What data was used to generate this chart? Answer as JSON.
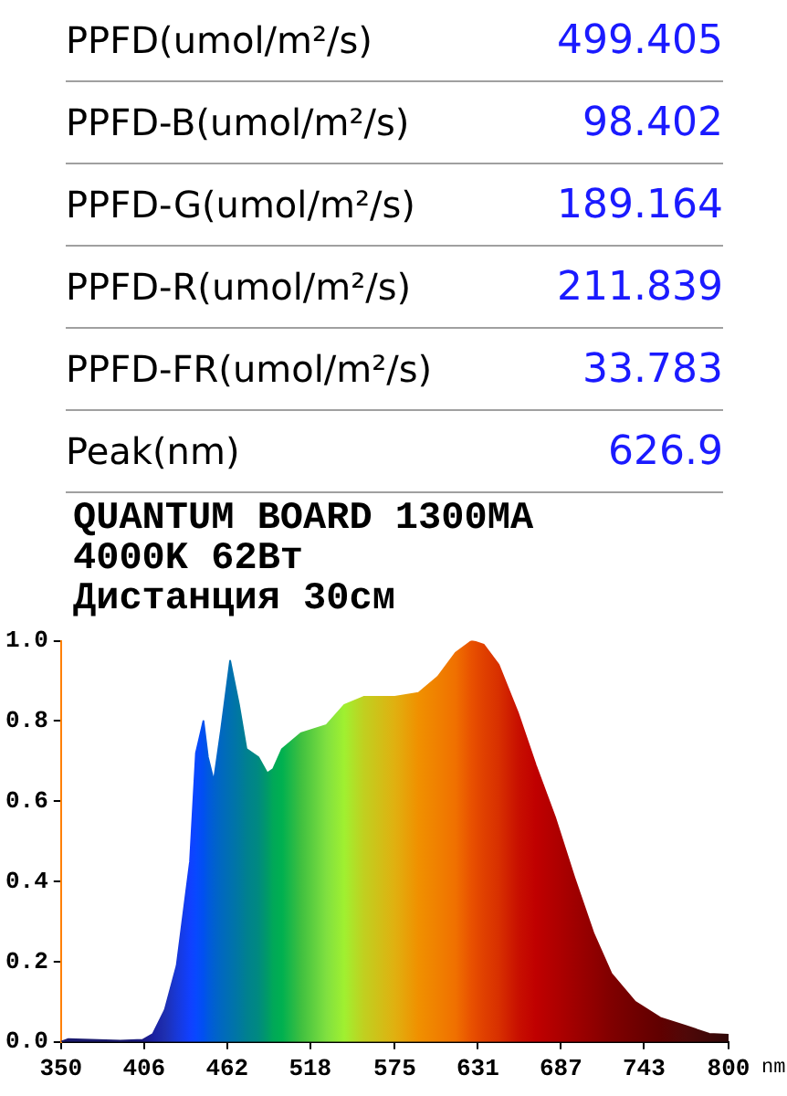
{
  "chart_data": {
    "type": "area",
    "title": "QUANTUM BOARD 1300MA",
    "subtitle": "4000K 62Вт",
    "xlabel": "nm",
    "annotations": [
      "PPFD(umol/m²/s)",
      "499.405",
      "PPFD-B(umol/m²/s)",
      "98.402",
      "PPFD-G(umol/m²/s)",
      "189.164",
      "PPFD-R(umol/m²/s)",
      "211.839",
      "PPFD-FR(umol/m²/s)",
      "33.783",
      "Peak(nm)",
      "626.9",
      "Дистанция 30см"
    ],
    "series": [
      {
        "x": [
          350,
          355,
          370,
          390,
          405,
          412,
          420,
          428,
          437,
          441,
          446,
          449,
          453,
          458,
          464,
          470,
          475,
          483,
          489,
          493,
          499,
          512,
          529,
          541,
          554,
          575,
          591,
          604,
          616,
          627,
          635,
          645,
          658,
          670,
          683,
          696,
          709,
          721,
          737,
          754,
          771,
          787,
          800
        ],
        "values": [
          0,
          0.007,
          0.005,
          0.003,
          0.005,
          0.02,
          0.08,
          0.19,
          0.45,
          0.72,
          0.8,
          0.71,
          0.65,
          0.78,
          0.95,
          0.84,
          0.73,
          0.71,
          0.67,
          0.68,
          0.73,
          0.77,
          0.79,
          0.84,
          0.86,
          0.86,
          0.87,
          0.91,
          0.97,
          1.0,
          0.99,
          0.94,
          0.82,
          0.69,
          0.56,
          0.41,
          0.27,
          0.17,
          0.1,
          0.06,
          0.04,
          0.02,
          0.018
        ],
        "colors": [
          "#1a1a6e",
          "#1a1a6e",
          "#1a1a6e",
          "#1a1a6e",
          "#1a1a80",
          "#1a20a0",
          "#1e2fb0",
          "#1838d8",
          "#1040ff",
          "#0848ff",
          "#0050f0",
          "#0058e0",
          "#0060d0",
          "#0068c0",
          "#0070b0",
          "#0078a0",
          "#008090",
          "#008a80",
          "#009a68",
          "#00a858",
          "#00b050",
          "#40c040",
          "#80e040",
          "#a0f030",
          "#c0d020",
          "#e0b010",
          "#f09000",
          "#f08000",
          "#f07000",
          "#e85000",
          "#e04000",
          "#d83000",
          "#c81000",
          "#c00000",
          "#b00000",
          "#a00000",
          "#900000",
          "#800000",
          "#700000",
          "#600000",
          "#500808",
          "#400808",
          "#300808"
        ]
      }
    ],
    "xlim": [
      350,
      800
    ],
    "ylim": [
      0,
      1.0
    ],
    "xticks": [
      350,
      406,
      462,
      518,
      575,
      631,
      687,
      743,
      800
    ],
    "yticks": [
      {
        "value": 0,
        "label": "0.0"
      },
      0.2,
      0.4,
      0.6,
      0.8,
      {
        "value": 1.0,
        "label": "1.0"
      }
    ],
    "grid": false,
    "legend": false
  }
}
